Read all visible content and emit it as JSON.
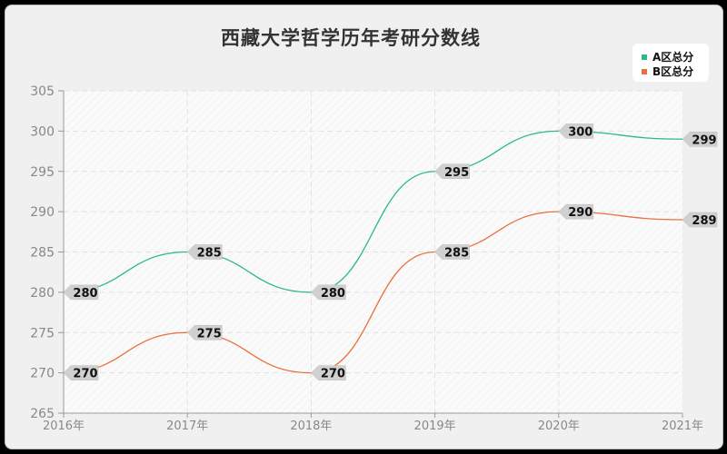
{
  "title": "西藏大学哲学历年考研分数线",
  "legend": [
    {
      "label": "A区总分",
      "color": "#2bb88a"
    },
    {
      "label": "B区总分",
      "color": "#e8703f"
    }
  ],
  "chart_data": {
    "type": "line",
    "title": "西藏大学哲学历年考研分数线",
    "xlabel": "",
    "ylabel": "",
    "categories": [
      "2016年",
      "2017年",
      "2018年",
      "2019年",
      "2020年",
      "2021年"
    ],
    "series": [
      {
        "name": "A区总分",
        "color": "#2bb88a",
        "values": [
          280,
          285,
          280,
          295,
          300,
          299
        ]
      },
      {
        "name": "B区总分",
        "color": "#e8703f",
        "values": [
          270,
          275,
          270,
          285,
          290,
          289
        ]
      }
    ],
    "yticks": [
      265,
      270,
      275,
      280,
      285,
      290,
      295,
      300,
      305
    ],
    "ylim": [
      265,
      305
    ],
    "grid": true,
    "legend_position": "top-right",
    "smooth": true
  }
}
